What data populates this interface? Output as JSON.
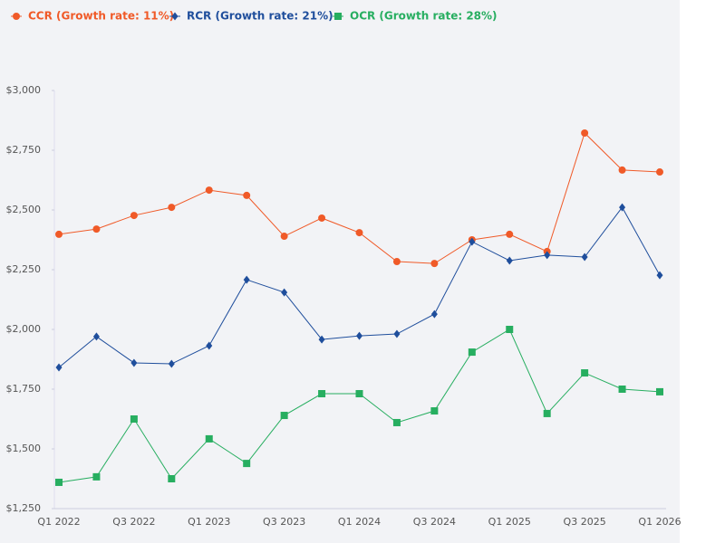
{
  "chart_data": {
    "type": "line",
    "categories": [
      "Q1 2022",
      null,
      "Q3 2022",
      null,
      "Q1 2023",
      null,
      "Q3 2023",
      null,
      "Q1 2024",
      null,
      "Q3 2024",
      null,
      "Q1 2025",
      null,
      "Q3 2025",
      null,
      "Q1 2026"
    ],
    "series": [
      {
        "name": "CCR (Growth rate: 11%)",
        "color": "#f05a28",
        "marker": "circle",
        "values": [
          2398,
          2420,
          2477,
          2511,
          2583,
          2561,
          2390,
          2466,
          2405,
          2284,
          2276,
          2375,
          2398,
          2326,
          2822,
          2667,
          2659
        ]
      },
      {
        "name": "RCR (Growth rate: 21%)",
        "color": "#1f4e9c",
        "marker": "diamond",
        "values": [
          1841,
          1970,
          1860,
          1856,
          1932,
          2208,
          2155,
          1958,
          1973,
          1981,
          2064,
          2367,
          2288,
          2311,
          2303,
          2511,
          2227
        ]
      },
      {
        "name": "OCR (Growth rate: 28%)",
        "color": "#27ae60",
        "marker": "square",
        "values": [
          1360,
          1383,
          1625,
          1375,
          1542,
          1439,
          1640,
          1731,
          1731,
          1610,
          1659,
          1905,
          2000,
          1648,
          1818,
          1750,
          1739
        ]
      }
    ],
    "ylim": [
      1250,
      3000
    ],
    "yticks": [
      {
        "value": 1250,
        "label": "$1,250"
      },
      {
        "value": 1500,
        "label": "$1,500"
      },
      {
        "value": 1750,
        "label": "$1,750"
      },
      {
        "value": 2000,
        "label": "$2,000"
      },
      {
        "value": 2250,
        "label": "$2,250"
      },
      {
        "value": 2500,
        "label": "$2,500"
      },
      {
        "value": 2750,
        "label": "$2,750"
      },
      {
        "value": 3000,
        "label": "$3,000"
      }
    ],
    "grid": false,
    "legend": "top"
  }
}
